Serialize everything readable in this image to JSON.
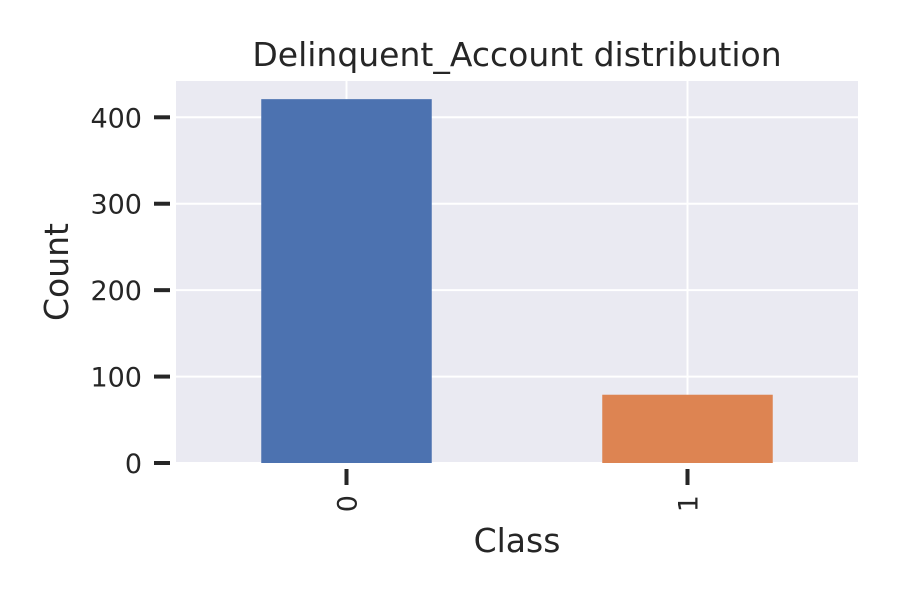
{
  "chart_data": {
    "type": "bar",
    "title": "Delinquent_Account distribution",
    "xlabel": "Class",
    "ylabel": "Count",
    "categories": [
      "0",
      "1"
    ],
    "values": [
      421,
      79
    ],
    "bar_colors": [
      "#4c72b0",
      "#dd8452"
    ],
    "ylim": [
      0,
      442
    ],
    "yticks": [
      0,
      100,
      200,
      300,
      400
    ],
    "ytick_labels": [
      "0",
      "100",
      "200",
      "300",
      "400"
    ],
    "grid": true,
    "background_color": "#eaeaf2",
    "x_tick_rotation": "vertical"
  }
}
